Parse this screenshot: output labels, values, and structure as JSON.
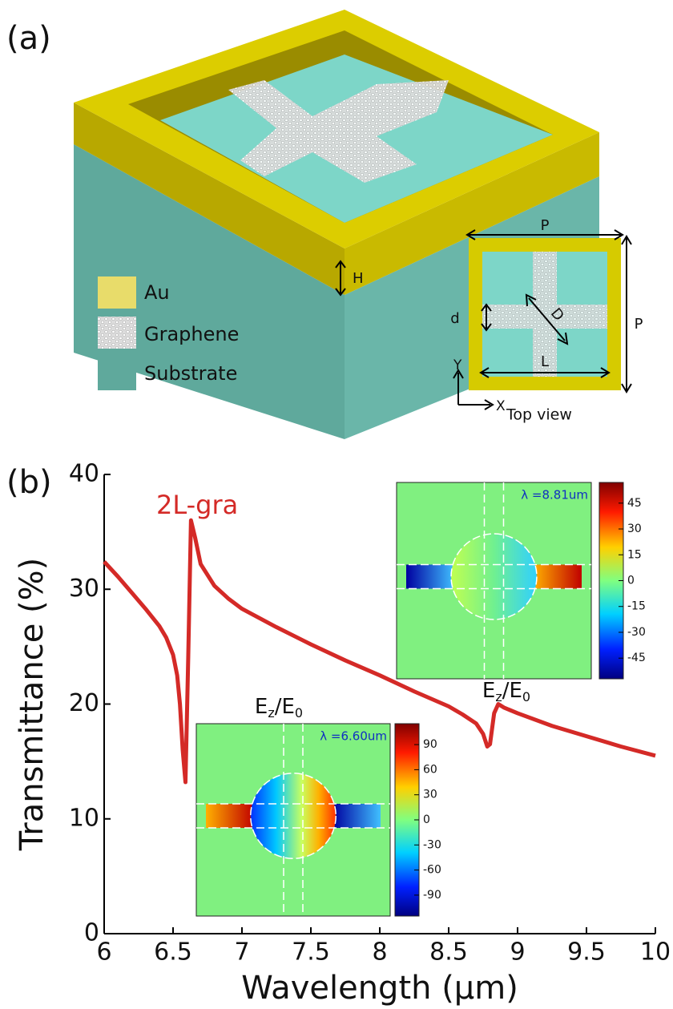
{
  "panel_a": {
    "label": "(a)",
    "legend": [
      "Au",
      "Graphene",
      "Substrate"
    ],
    "height_label": "H",
    "top_view": {
      "labels": [
        "P",
        "P",
        "d",
        "D",
        "L"
      ],
      "axes": [
        "Y",
        "X"
      ],
      "caption": "Top view"
    }
  },
  "chart_data": {
    "type": "line",
    "panel_label": "(b)",
    "xlabel": "Wavelength (µm)",
    "ylabel": "Transmittance (%)",
    "x": [
      6.0,
      6.1,
      6.2,
      6.3,
      6.4,
      6.45,
      6.5,
      6.53,
      6.55,
      6.57,
      6.59,
      6.61,
      6.63,
      6.66,
      6.7,
      6.8,
      6.9,
      7.0,
      7.25,
      7.5,
      7.75,
      8.0,
      8.25,
      8.5,
      8.6,
      8.7,
      8.75,
      8.78,
      8.8,
      8.83,
      8.86,
      8.9,
      9.0,
      9.25,
      9.5,
      9.75,
      10.0
    ],
    "series": [
      {
        "name": "2L-gra",
        "color": "#d42a27",
        "values": [
          32.4,
          31.1,
          29.7,
          28.3,
          26.8,
          25.8,
          24.3,
          22.5,
          20.0,
          16.0,
          13.2,
          24.0,
          36.0,
          34.5,
          32.2,
          30.3,
          29.2,
          28.3,
          26.7,
          25.2,
          23.8,
          22.5,
          21.1,
          19.8,
          19.1,
          18.3,
          17.4,
          16.3,
          16.5,
          19.2,
          20.0,
          19.7,
          19.2,
          18.1,
          17.2,
          16.3,
          15.5
        ]
      }
    ],
    "xlim": [
      6,
      10
    ],
    "ylim": [
      0,
      40
    ],
    "xticks": [
      6,
      6.5,
      7,
      7.5,
      8,
      8.5,
      9,
      9.5,
      10
    ],
    "yticks": [
      0,
      10,
      20,
      30,
      40
    ],
    "insets": [
      {
        "label_parts": [
          "E",
          "z",
          "/E",
          "0"
        ],
        "wavelength_label": "λ =6.60um",
        "colorbar": {
          "lim": [
            -115,
            115
          ],
          "ticks": [
            90,
            60,
            30,
            0,
            -30,
            -60,
            -90
          ]
        }
      },
      {
        "label_parts": [
          "E",
          "z",
          "/E",
          "0"
        ],
        "wavelength_label": "λ =8.81um",
        "colorbar": {
          "lim": [
            -57,
            57
          ],
          "ticks": [
            45,
            30,
            15,
            0,
            -15,
            -30,
            -45
          ]
        }
      }
    ]
  }
}
